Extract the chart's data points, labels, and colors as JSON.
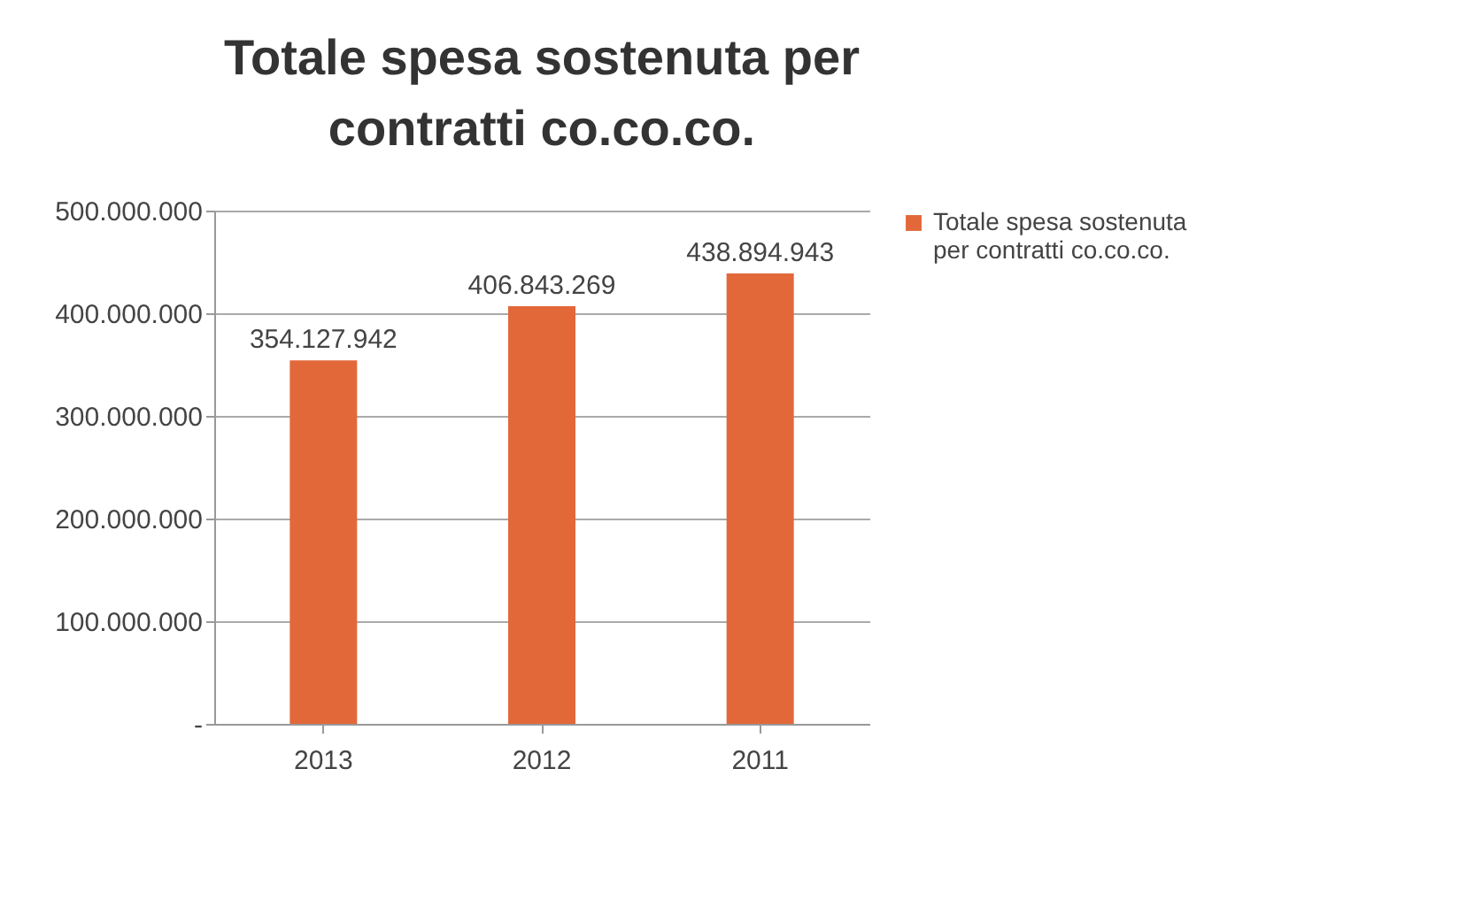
{
  "chart_data": {
    "type": "bar",
    "title": "Totale spesa sostenuta per contratti co.co.co.",
    "categories": [
      "2013",
      "2012",
      "2011"
    ],
    "series": [
      {
        "name": "Totale spesa sostenuta per contratti co.co.co.",
        "color": "#e2683a",
        "values": [
          354127942,
          406843269,
          438894943
        ],
        "value_labels": [
          "354.127.942",
          "406.843.269",
          "438.894.943"
        ]
      }
    ],
    "ylim": [
      0,
      500000000
    ],
    "yticks": [
      {
        "value": 0,
        "label": "-"
      },
      {
        "value": 100000000,
        "label": "100.000.000"
      },
      {
        "value": 200000000,
        "label": "200.000.000"
      },
      {
        "value": 300000000,
        "label": "300.000.000"
      },
      {
        "value": 400000000,
        "label": "400.000.000"
      },
      {
        "value": 500000000,
        "label": "500.000.000"
      }
    ],
    "grid": "y",
    "legend": "right"
  }
}
